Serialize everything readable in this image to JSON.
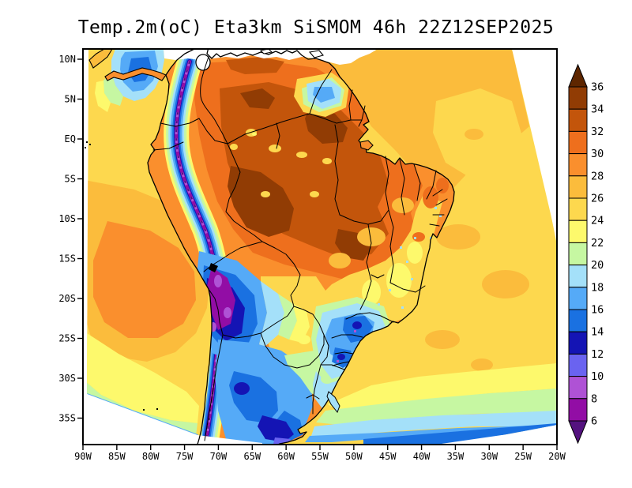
{
  "title": "Temp.2m(oC) Eta3km SiSMOM 46h 22Z12SEP2025",
  "axes": {
    "lat_ticks": [
      "10N",
      "5N",
      "EQ",
      "5S",
      "10S",
      "15S",
      "20S",
      "25S",
      "30S",
      "35S"
    ],
    "lon_ticks": [
      "90W",
      "85W",
      "80W",
      "75W",
      "70W",
      "65W",
      "60W",
      "55W",
      "50W",
      "45W",
      "40W",
      "35W",
      "30W",
      "25W",
      "20W"
    ]
  },
  "colorbar": {
    "levels": [
      36,
      34,
      32,
      30,
      28,
      26,
      24,
      22,
      20,
      18,
      16,
      14,
      12,
      10,
      8,
      6
    ],
    "colors_warm_to_cold": [
      "#5e2600",
      "#913c04",
      "#c3550b",
      "#ee6f1d",
      "#fa8f2d",
      "#fbbc3c",
      "#fdd84e",
      "#fdf96c",
      "#c6f7a2",
      "#a4e0f9",
      "#55aaf7",
      "#1a71e1",
      "#1414b4",
      "#6a63f0",
      "#af52d5",
      "#920da5",
      "#54127f"
    ]
  },
  "palette": {
    "t34": "#913c04",
    "t32": "#c3550b",
    "t30": "#ee6f1d",
    "t28": "#fa8f2d",
    "t26": "#fbbc3c",
    "t24": "#fdd84e",
    "t22": "#fdf96c",
    "t20": "#c6f7a2",
    "t18": "#a4e0f9",
    "t16": "#55aaf7",
    "t14": "#1a71e1",
    "t12": "#1414b4",
    "t10": "#6a63f0",
    "t8": "#af52d5",
    "t6": "#920da5",
    "tlt6": "#54127f"
  },
  "chart_data": {
    "type": "heatmap",
    "title": "Temp.2m(oC) Eta3km SiSMOM 46h 22Z12SEP2025",
    "variable": "2-meter air temperature (oC)",
    "model": "Eta3km SiSMOM",
    "forecast_hour": "46h",
    "valid_time": "22Z12SEP2025",
    "x_tick_labels": [
      "90W",
      "85W",
      "80W",
      "75W",
      "70W",
      "65W",
      "60W",
      "55W",
      "50W",
      "45W",
      "40W",
      "35W",
      "30W",
      "25W",
      "20W"
    ],
    "y_tick_labels": [
      "10N",
      "5N",
      "EQ",
      "5S",
      "10S",
      "15S",
      "20S",
      "25S",
      "30S",
      "35S"
    ],
    "colorbar_levels_degC": [
      36,
      34,
      32,
      30,
      28,
      26,
      24,
      22,
      20,
      18,
      16,
      14,
      12,
      10,
      8,
      6
    ],
    "colorbar_colors_warm_to_cold": [
      "#5e2600",
      "#913c04",
      "#c3550b",
      "#ee6f1d",
      "#fa8f2d",
      "#fbbc3c",
      "#fdd84e",
      "#fdf96c",
      "#c6f7a2",
      "#a4e0f9",
      "#55aaf7",
      "#1a71e1",
      "#1414b4",
      "#6a63f0",
      "#af52d5",
      "#920da5",
      "#54127f"
    ],
    "legend_position": "right",
    "notes": "Filled contour map over South America: Amazon basin 30-36C, Andes and Patagonia 6-14C, tropical Atlantic 24-28C, far South Atlantic/Pacific 14-22C"
  }
}
